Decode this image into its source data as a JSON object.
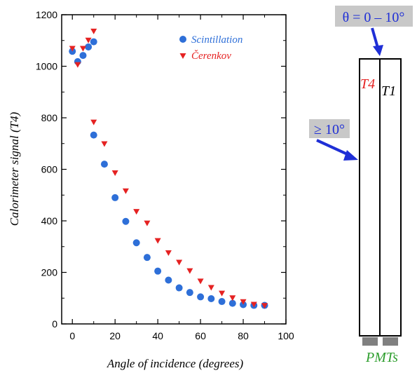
{
  "chart_data": {
    "type": "scatter",
    "xlabel": "Angle of incidence (degrees)",
    "ylabel": "Calorimeter signal (T4)",
    "xlim": [
      -5,
      100
    ],
    "ylim": [
      0,
      1200
    ],
    "xticks": [
      "0",
      "20",
      "40",
      "60",
      "80",
      "100"
    ],
    "yticks": [
      "0",
      "200",
      "400",
      "600",
      "800",
      "1000",
      "1200"
    ],
    "grid": false,
    "legend_position": "top-right",
    "series": [
      {
        "name": "Scintillation",
        "marker": "circle",
        "color": "#2e6fd8",
        "x": [
          0,
          2.5,
          5,
          7.5,
          10,
          10,
          15,
          20,
          25,
          30,
          35,
          40,
          45,
          50,
          55,
          60,
          65,
          70,
          75,
          80,
          85,
          90
        ],
        "y": [
          1058,
          1018,
          1042,
          1075,
          1095,
          733,
          620,
          490,
          398,
          315,
          258,
          205,
          170,
          140,
          122,
          105,
          98,
          87,
          80,
          75,
          72,
          72
        ]
      },
      {
        "name": "Čerenkov",
        "marker": "triangle-down",
        "color": "#e52222",
        "x": [
          0,
          2.5,
          5,
          7.5,
          10,
          10,
          15,
          20,
          25,
          30,
          35,
          40,
          45,
          50,
          55,
          60,
          65,
          70,
          75,
          80,
          85,
          90
        ],
        "y": [
          1068,
          1005,
          1068,
          1100,
          1135,
          782,
          698,
          585,
          515,
          435,
          390,
          322,
          275,
          238,
          205,
          165,
          140,
          118,
          100,
          85,
          75,
          70
        ]
      }
    ]
  },
  "diagram": {
    "top_label": "θ = 0 – 10°",
    "side_label": "≥ 10°",
    "left_bar_label": "T4",
    "right_bar_label": "T1",
    "bottom_label": "PMTs",
    "colors": {
      "top_label_bg": "#c8c8c8",
      "side_label_bg": "#c8c8c8",
      "arrow": "#1f2fd6",
      "t4": "#e52222",
      "t1": "#000000",
      "pmts": "#2e9e2e",
      "pmt_block": "#808080"
    }
  }
}
